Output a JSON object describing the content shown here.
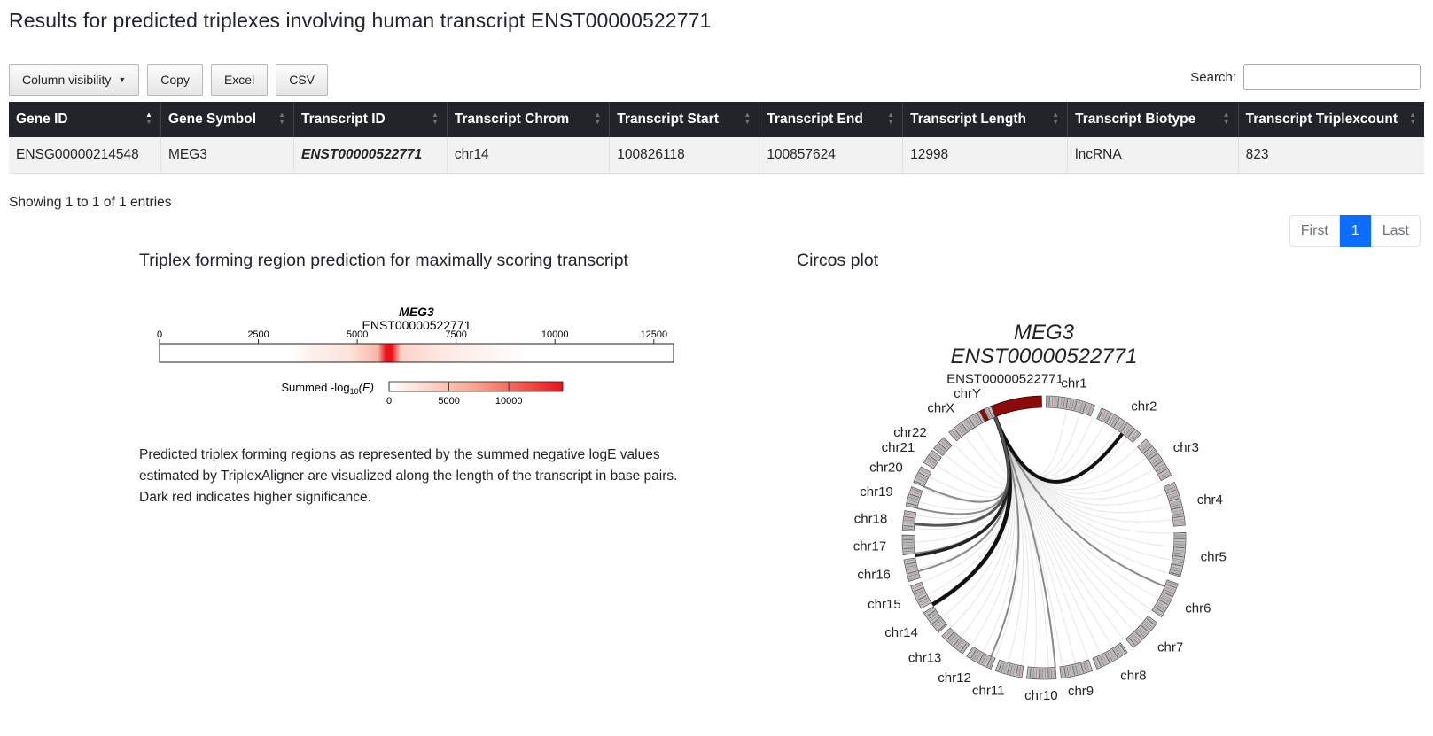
{
  "page_title": "Results for predicted triplexes involving human transcript ENST00000522771",
  "toolbar": {
    "column_visibility": "Column visibility",
    "column_visibility_caret": "▼",
    "copy": "Copy",
    "excel": "Excel",
    "csv": "CSV"
  },
  "search": {
    "label": "Search:",
    "value": ""
  },
  "table": {
    "headers": [
      "Gene ID",
      "Gene Symbol",
      "Transcript ID",
      "Transcript Chrom",
      "Transcript Start",
      "Transcript End",
      "Transcript Length",
      "Transcript Biotype",
      "Transcript Triplexcount"
    ],
    "rows": [
      [
        "ENSG00000214548",
        "MEG3",
        "ENST00000522771",
        "chr14",
        "100826118",
        "100857624",
        "12998",
        "lncRNA",
        "823"
      ]
    ]
  },
  "info": "Showing 1 to 1 of 1 entries",
  "pagination": {
    "first": "First",
    "current": "1",
    "last": "Last"
  },
  "tfr": {
    "title": "Triplex forming region prediction for maximally scoring transcript",
    "gene": "MEG3",
    "transcript": "ENST00000522771",
    "axis_ticks": [
      "0",
      "2500",
      "5000",
      "7500",
      "10000",
      "12500"
    ],
    "colorbar_label_prefix": "Summed -log",
    "colorbar_label_sub": "10",
    "colorbar_label_var": "(E)",
    "colorbar_ticks": [
      "0",
      "5000",
      "10000"
    ],
    "description": "Predicted triplex forming regions as represented by the summed negative logE values estimated by TriplexAligner are visualized along the length of the transcript in base pairs. Dark red indicates higher significance."
  },
  "circos": {
    "title": "Circos plot",
    "gene": "MEG3",
    "transcript": "ENST00000522771",
    "transcript_label": "ENST00000522771",
    "chromosomes": [
      "chr1",
      "chr2",
      "chr3",
      "chr4",
      "chr5",
      "chr6",
      "chr7",
      "chr8",
      "chr9",
      "chr10",
      "chr11",
      "chr12",
      "chr13",
      "chr14",
      "chr15",
      "chr16",
      "chr17",
      "chr18",
      "chr19",
      "chr20",
      "chr21",
      "chr22",
      "chrX",
      "chrY"
    ]
  },
  "colors": {
    "header_bg": "#212529",
    "row_bg": "#f2f2f2",
    "page_active": "#0d6efd",
    "transcript_block": "#8b0a0a",
    "heat_red": "#e8141a"
  }
}
